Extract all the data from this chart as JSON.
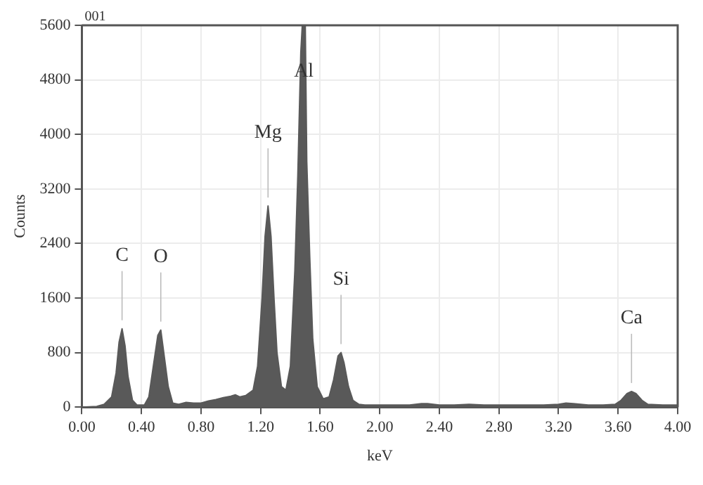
{
  "chart_data": {
    "type": "area",
    "xlabel": "keV",
    "ylabel": "Counts",
    "annotations": [
      "001",
      {
        "text": "C",
        "x": 0.27,
        "y": 1150
      },
      {
        "text": "O",
        "x": 0.53,
        "y": 1130
      },
      {
        "text": "Mg",
        "x": 1.25,
        "y": 2950
      },
      {
        "text": "Al",
        "x": 1.49,
        "y": 5600
      },
      {
        "text": "Si",
        "x": 1.74,
        "y": 800
      },
      {
        "text": "Ca",
        "x": 3.69,
        "y": 230
      }
    ],
    "x": [
      0,
      0.1,
      0.15,
      0.2,
      0.23,
      0.25,
      0.27,
      0.29,
      0.31,
      0.34,
      0.37,
      0.42,
      0.45,
      0.48,
      0.51,
      0.53,
      0.55,
      0.58,
      0.61,
      0.65,
      0.7,
      0.75,
      0.8,
      0.85,
      0.9,
      0.95,
      1.0,
      1.03,
      1.06,
      1.1,
      1.15,
      1.18,
      1.21,
      1.23,
      1.25,
      1.27,
      1.29,
      1.31,
      1.34,
      1.37,
      1.4,
      1.43,
      1.45,
      1.47,
      1.48,
      1.5,
      1.51,
      1.53,
      1.55,
      1.58,
      1.62,
      1.66,
      1.69,
      1.72,
      1.74,
      1.76,
      1.79,
      1.82,
      1.86,
      1.9,
      2.0,
      2.1,
      2.2,
      2.28,
      2.32,
      2.4,
      2.5,
      2.6,
      2.7,
      2.8,
      2.9,
      3.0,
      3.1,
      3.2,
      3.25,
      3.3,
      3.4,
      3.5,
      3.58,
      3.62,
      3.66,
      3.69,
      3.72,
      3.76,
      3.8,
      3.9,
      4.0
    ],
    "series": [
      {
        "color": "#595959",
        "values": [
          0,
          10,
          40,
          150,
          500,
          950,
          1150,
          900,
          450,
          100,
          30,
          30,
          150,
          600,
          1050,
          1130,
          800,
          300,
          60,
          40,
          70,
          60,
          60,
          90,
          110,
          140,
          160,
          180,
          150,
          170,
          250,
          600,
          1600,
          2500,
          2950,
          2500,
          1600,
          800,
          300,
          250,
          600,
          2000,
          3400,
          5200,
          5600,
          5600,
          3600,
          2200,
          1000,
          300,
          120,
          150,
          400,
          750,
          800,
          650,
          300,
          100,
          40,
          30,
          30,
          30,
          30,
          50,
          50,
          30,
          30,
          40,
          30,
          30,
          30,
          30,
          30,
          40,
          60,
          50,
          30,
          30,
          40,
          100,
          200,
          230,
          200,
          100,
          40,
          30,
          30
        ]
      }
    ],
    "xlim": [
      0,
      4
    ],
    "ylim": [
      0,
      5600
    ],
    "xticks": [
      {
        "value": 0,
        "label": "0.00"
      },
      {
        "value": 0.4,
        "label": "0.40"
      },
      {
        "value": 0.8,
        "label": "0.80"
      },
      {
        "value": 1.2,
        "label": "1.20"
      },
      {
        "value": 1.6,
        "label": "1.60"
      },
      {
        "value": 2,
        "label": "2.00"
      },
      {
        "value": 2.4,
        "label": "2.40"
      },
      {
        "value": 2.8,
        "label": "2.80"
      },
      {
        "value": 3.2,
        "label": "3.20"
      },
      {
        "value": 3.6,
        "label": "3.60"
      },
      {
        "value": 4,
        "label": "4.00"
      }
    ],
    "yticks": [
      0,
      800,
      1600,
      2400,
      3200,
      4000,
      4800,
      5600
    ],
    "grid": true,
    "legend": false
  }
}
